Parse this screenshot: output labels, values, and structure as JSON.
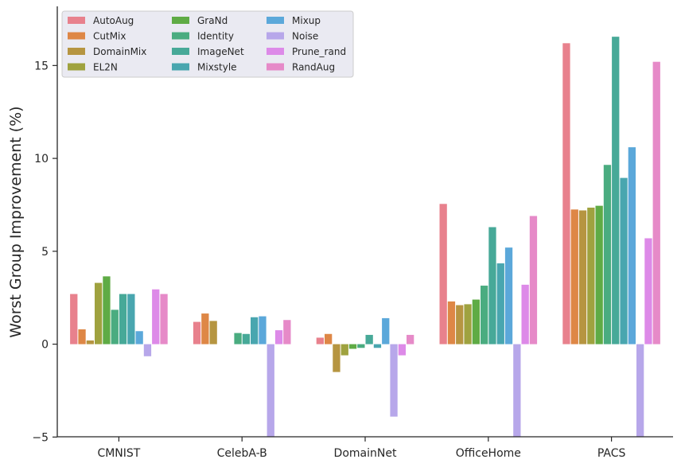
{
  "chart_data": {
    "type": "bar",
    "title": "",
    "xlabel": "",
    "ylabel": "Worst Group Improvement (%)",
    "ylim": [
      -5,
      18
    ],
    "yticks": [
      -5,
      0,
      5,
      10,
      15
    ],
    "ytick_labels": [
      "−5",
      "0",
      "5",
      "10",
      "15"
    ],
    "legend_position": "top-left",
    "legend_columns": 3,
    "categories": [
      "CMNIST",
      "CelebA-B",
      "DomainNet",
      "OfficeHome",
      "PACS"
    ],
    "series": [
      {
        "name": "AutoAug",
        "color": "#e8818d",
        "values": [
          2.7,
          1.2,
          0.35,
          7.55,
          16.2
        ]
      },
      {
        "name": "CutMix",
        "color": "#de8746",
        "values": [
          0.8,
          1.65,
          0.55,
          2.3,
          7.25
        ]
      },
      {
        "name": "DomainMix",
        "color": "#b69541",
        "values": [
          0.2,
          1.25,
          -1.5,
          2.1,
          7.2
        ]
      },
      {
        "name": "EL2N",
        "color": "#9fa23f",
        "values": [
          3.3,
          0.0,
          -0.6,
          2.15,
          7.35
        ]
      },
      {
        "name": "GraNd",
        "color": "#5fab45",
        "values": [
          3.65,
          0.0,
          -0.25,
          2.4,
          7.45
        ]
      },
      {
        "name": "Identity",
        "color": "#4aac80",
        "values": [
          1.85,
          0.6,
          -0.2,
          3.15,
          9.65
        ]
      },
      {
        "name": "ImageNet",
        "color": "#47a998",
        "values": [
          2.7,
          0.55,
          0.5,
          6.3,
          16.55
        ]
      },
      {
        "name": "Mixstyle",
        "color": "#49a6af",
        "values": [
          2.7,
          1.45,
          -0.2,
          4.35,
          8.95
        ]
      },
      {
        "name": "Mixup",
        "color": "#5ba8da",
        "values": [
          0.7,
          1.5,
          1.4,
          5.2,
          10.6
        ]
      },
      {
        "name": "Noise",
        "color": "#b7a7ea",
        "values": [
          -0.65,
          -5.0,
          -3.9,
          -5.0,
          -5.0
        ]
      },
      {
        "name": "Prune_rand",
        "color": "#dd8ae8",
        "values": [
          2.95,
          0.75,
          -0.6,
          3.2,
          5.7
        ]
      },
      {
        "name": "RandAug",
        "color": "#e68ac8",
        "values": [
          2.7,
          1.3,
          0.5,
          6.9,
          15.2
        ]
      }
    ]
  }
}
